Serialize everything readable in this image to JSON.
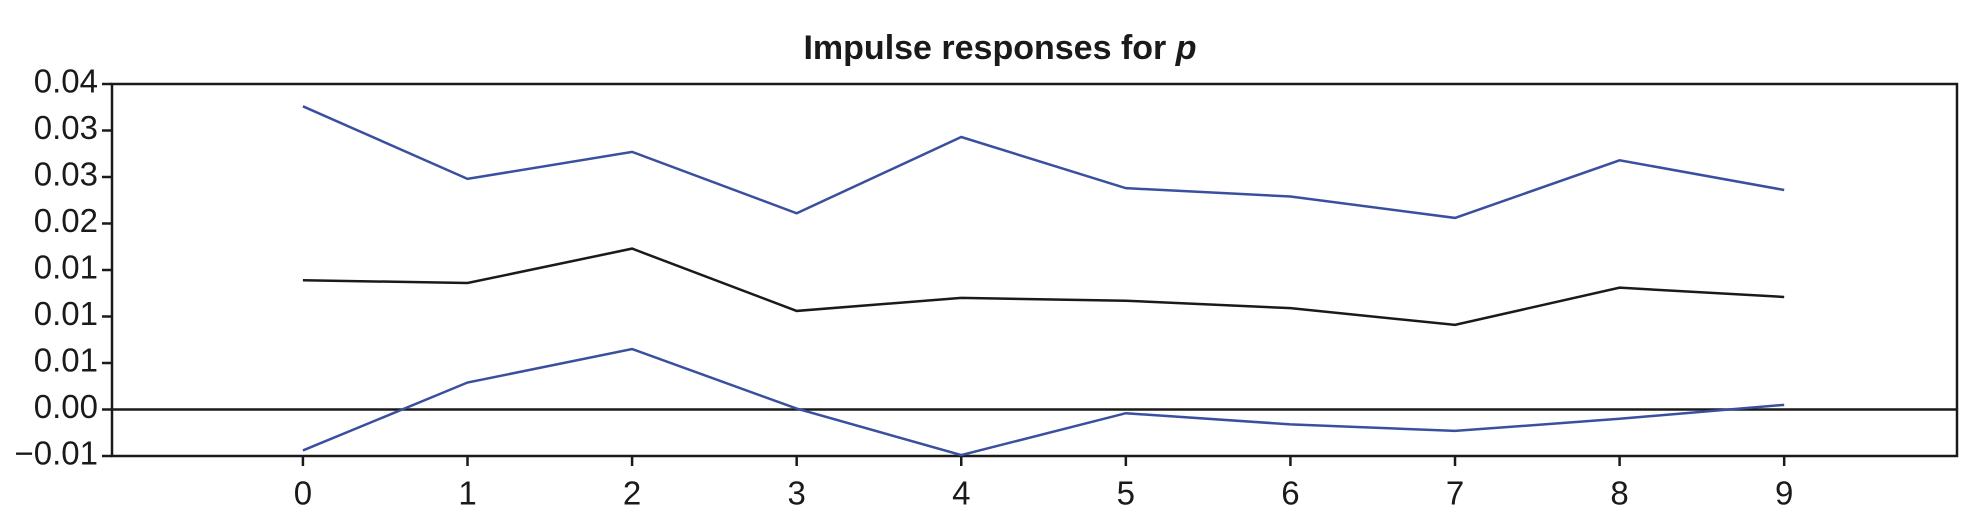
{
  "chart_data": {
    "type": "line",
    "title": "Impulse responses for p",
    "x": [
      0,
      1,
      2,
      3,
      4,
      5,
      6,
      7,
      8,
      9
    ],
    "series": [
      {
        "color": "#3b4f9f",
        "values": [
          0.0326,
          0.0248,
          0.0277,
          0.0211,
          0.0293,
          0.0238,
          0.0229,
          0.0206,
          0.0268,
          0.0236
        ]
      },
      {
        "color": "#1a1a1a",
        "values": [
          0.0139,
          0.0136,
          0.0173,
          0.0106,
          0.012,
          0.0117,
          0.0109,
          0.0091,
          0.0131,
          0.0121
        ]
      },
      {
        "color": "#3b4f9f",
        "values": [
          -0.0044,
          0.0029,
          0.0065,
          0.0001,
          -0.0049,
          -0.0004,
          -0.0016,
          -0.0023,
          -0.001,
          0.0005
        ]
      }
    ],
    "xlim": [
      -1.16,
      10.05
    ],
    "xticks": [
      0,
      1,
      2,
      3,
      4,
      5,
      6,
      7,
      8,
      9
    ],
    "ylim": [
      -0.005,
      0.035
    ],
    "yticks": [
      {
        "value": -0.005,
        "label": "−0.01"
      },
      {
        "value": 0,
        "label": "0.00"
      },
      {
        "value": 0.005,
        "label": "0.01"
      },
      {
        "value": 0.01,
        "label": "0.01"
      },
      {
        "value": 0.015,
        "label": "0.01"
      },
      {
        "value": 0.02,
        "label": "0.02"
      },
      {
        "value": 0.025,
        "label": "0.03"
      },
      {
        "value": 0.03,
        "label": "0.03"
      },
      {
        "value": 0.035,
        "label": "0.04"
      }
    ],
    "reference_line": 0
  }
}
